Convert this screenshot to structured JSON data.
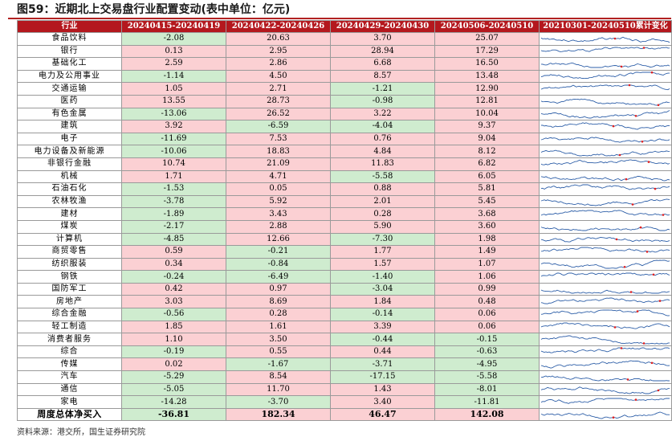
{
  "title": "图59：近期北上交易盘行业配置变动(表中单位：亿元)",
  "source": "资料来源：港交所，国生证券研究院",
  "header": {
    "industry": "行业",
    "periods": [
      "20240415-20240419",
      "20240422-20240426",
      "20240429-20240430",
      "20240506-20240510"
    ],
    "trend": "20210301-20240510累计变化"
  },
  "colors": {
    "header_bg": "#b4181e",
    "positive_bg": "#fbd0d3",
    "negative_bg": "#cfeccf",
    "line": "#2e5fa8",
    "marker": "#e02020"
  },
  "rows": [
    {
      "name": "食品饮料",
      "values": [
        "-2.08",
        "20.63",
        "3.70",
        "25.07"
      ]
    },
    {
      "name": "银行",
      "values": [
        "0.13",
        "2.95",
        "28.94",
        "17.29"
      ]
    },
    {
      "name": "基础化工",
      "values": [
        "2.59",
        "2.86",
        "6.68",
        "16.50"
      ]
    },
    {
      "name": "电力及公用事业",
      "values": [
        "-1.14",
        "4.50",
        "8.57",
        "13.48"
      ]
    },
    {
      "name": "交通运输",
      "values": [
        "1.05",
        "2.71",
        "-1.21",
        "12.90"
      ]
    },
    {
      "name": "医药",
      "values": [
        "13.55",
        "28.73",
        "-0.98",
        "12.81"
      ]
    },
    {
      "name": "有色金属",
      "values": [
        "-13.06",
        "26.52",
        "3.22",
        "10.04"
      ]
    },
    {
      "name": "建筑",
      "values": [
        "3.92",
        "-6.59",
        "-4.04",
        "9.37"
      ]
    },
    {
      "name": "电子",
      "values": [
        "-11.69",
        "7.53",
        "0.76",
        "9.04"
      ]
    },
    {
      "name": "电力设备及新能源",
      "values": [
        "-10.06",
        "18.83",
        "4.84",
        "8.12"
      ]
    },
    {
      "name": "非银行金融",
      "values": [
        "10.74",
        "21.09",
        "11.83",
        "6.82"
      ]
    },
    {
      "name": "机械",
      "values": [
        "1.71",
        "4.71",
        "-5.58",
        "6.05"
      ]
    },
    {
      "name": "石油石化",
      "values": [
        "-1.53",
        "0.05",
        "0.88",
        "5.81"
      ]
    },
    {
      "name": "农林牧渔",
      "values": [
        "-3.78",
        "5.92",
        "2.01",
        "5.45"
      ]
    },
    {
      "name": "建材",
      "values": [
        "-1.89",
        "3.43",
        "0.28",
        "3.68"
      ]
    },
    {
      "name": "煤炭",
      "values": [
        "-2.17",
        "2.88",
        "5.90",
        "3.60"
      ]
    },
    {
      "name": "计算机",
      "values": [
        "-4.85",
        "12.66",
        "-7.30",
        "1.98"
      ]
    },
    {
      "name": "商贸零售",
      "values": [
        "0.59",
        "-0.21",
        "1.77",
        "1.49"
      ]
    },
    {
      "name": "纺织服装",
      "values": [
        "0.34",
        "-0.84",
        "1.57",
        "1.07"
      ]
    },
    {
      "name": "钢铁",
      "values": [
        "-0.24",
        "-6.49",
        "-1.40",
        "1.06"
      ]
    },
    {
      "name": "国防军工",
      "values": [
        "0.42",
        "0.97",
        "-3.04",
        "0.99"
      ]
    },
    {
      "name": "房地产",
      "values": [
        "3.03",
        "8.69",
        "1.84",
        "0.48"
      ]
    },
    {
      "name": "综合金融",
      "values": [
        "-0.56",
        "0.28",
        "-0.14",
        "0.06"
      ]
    },
    {
      "name": "轻工制造",
      "values": [
        "1.85",
        "1.61",
        "3.39",
        "0.06"
      ]
    },
    {
      "name": "消费者服务",
      "values": [
        "1.10",
        "3.50",
        "-0.44",
        "-0.15"
      ]
    },
    {
      "name": "综合",
      "values": [
        "-0.19",
        "0.55",
        "0.44",
        "-0.63"
      ]
    },
    {
      "name": "传媒",
      "values": [
        "0.02",
        "-1.67",
        "-3.71",
        "-4.95"
      ]
    },
    {
      "name": "汽车",
      "values": [
        "-5.29",
        "8.54",
        "-17.15",
        "-5.58"
      ]
    },
    {
      "name": "通信",
      "values": [
        "-5.05",
        "11.70",
        "1.43",
        "-8.01"
      ]
    },
    {
      "name": "家电",
      "values": [
        "-14.28",
        "-3.70",
        "3.40",
        "-11.81"
      ]
    }
  ],
  "total": {
    "name": "周度总体净买入",
    "values": [
      "-36.81",
      "182.34",
      "46.47",
      "142.08"
    ]
  }
}
